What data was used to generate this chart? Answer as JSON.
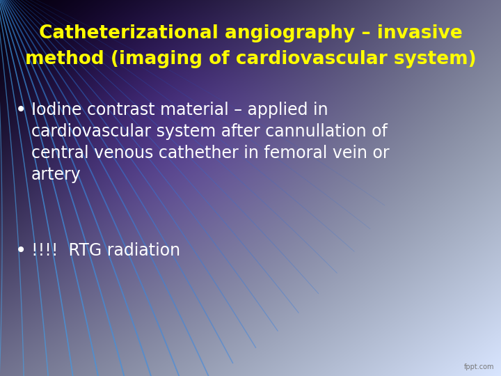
{
  "title_line1": "Catheterizational angiography – invasive",
  "title_line2": "method (imaging of cardiovascular system)",
  "title_color": "#FFFF00",
  "title_fontsize": 19,
  "bullet1_lines": [
    "Iodine contrast material – applied in",
    "cardiovascular system after cannullation of",
    "central venous cathether in femoral vein or",
    "artery"
  ],
  "bullet2_text": "!!!!  RTG radiation",
  "bullet_color": "#FFFFFF",
  "bullet_fontsize": 17,
  "bullet_marker": "•",
  "fppt_color": "#777777",
  "fppt_text": "fppt.com"
}
